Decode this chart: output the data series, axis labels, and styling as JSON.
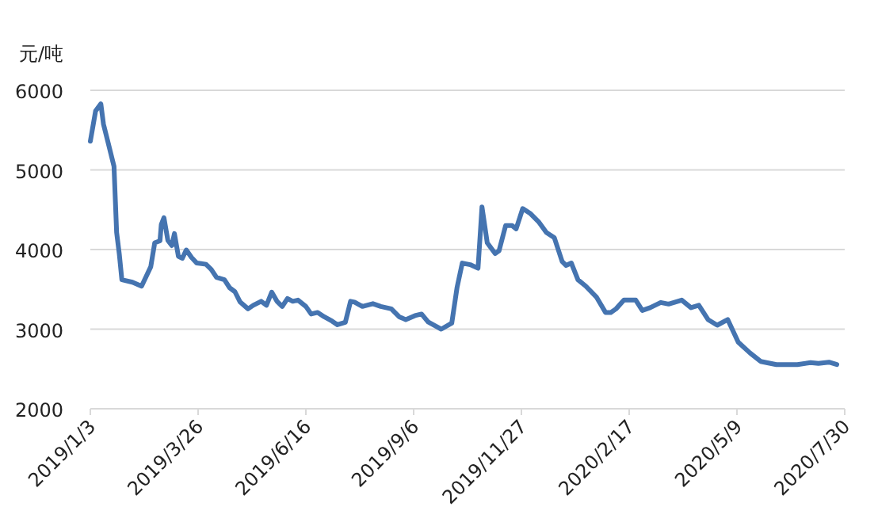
{
  "chart_data": {
    "type": "line",
    "ylabel": "元/吨",
    "color": "#4574b0",
    "grid": "y",
    "marker": "none",
    "line_style": "solid",
    "xlim": [
      "2019-01-03",
      "2020-07-30"
    ],
    "ylim": [
      2000,
      6000
    ],
    "yticks": [
      2000,
      3000,
      4000,
      5000,
      6000
    ],
    "xticks": [
      {
        "value": "2019-01-03",
        "label": "2019/1/3"
      },
      {
        "value": "2019-03-26",
        "label": "2019/3/26"
      },
      {
        "value": "2019-06-16",
        "label": "2019/6/16"
      },
      {
        "value": "2019-09-06",
        "label": "2019/9/6"
      },
      {
        "value": "2019-11-27",
        "label": "2019/11/27"
      },
      {
        "value": "2020-02-17",
        "label": "2020/2/17"
      },
      {
        "value": "2020-05-09",
        "label": "2020/5/9"
      },
      {
        "value": "2020-07-30",
        "label": "2020/7/30"
      }
    ],
    "x": [
      "2019-01-03",
      "2019-01-07",
      "2019-01-11",
      "2019-01-13",
      "2019-01-17",
      "2019-01-21",
      "2019-01-23",
      "2019-01-25",
      "2019-01-27",
      "2019-02-04",
      "2019-02-11",
      "2019-02-18",
      "2019-02-21",
      "2019-02-25",
      "2019-02-26",
      "2019-02-28",
      "2019-03-03",
      "2019-03-06",
      "2019-03-08",
      "2019-03-11",
      "2019-03-14",
      "2019-03-17",
      "2019-03-21",
      "2019-03-25",
      "2019-04-01",
      "2019-04-05",
      "2019-04-09",
      "2019-04-15",
      "2019-04-19",
      "2019-04-23",
      "2019-04-27",
      "2019-05-03",
      "2019-05-07",
      "2019-05-13",
      "2019-05-17",
      "2019-05-21",
      "2019-05-25",
      "2019-05-29",
      "2019-06-02",
      "2019-06-06",
      "2019-06-10",
      "2019-06-16",
      "2019-06-20",
      "2019-06-25",
      "2019-06-30",
      "2019-07-06",
      "2019-07-10",
      "2019-07-16",
      "2019-07-20",
      "2019-07-23",
      "2019-07-29",
      "2019-08-06",
      "2019-08-12",
      "2019-08-20",
      "2019-08-26",
      "2019-08-31",
      "2019-09-07",
      "2019-09-12",
      "2019-09-17",
      "2019-09-23",
      "2019-09-27",
      "2019-10-05",
      "2019-10-09",
      "2019-10-13",
      "2019-10-19",
      "2019-10-25",
      "2019-10-28",
      "2019-11-01",
      "2019-11-07",
      "2019-11-10",
      "2019-11-15",
      "2019-11-20",
      "2019-11-23",
      "2019-11-28",
      "2019-12-04",
      "2019-12-10",
      "2019-12-16",
      "2019-12-22",
      "2019-12-28",
      "2019-12-31",
      "2020-01-04",
      "2020-01-09",
      "2020-01-15",
      "2020-01-23",
      "2020-01-30",
      "2020-02-03",
      "2020-02-07",
      "2020-02-13",
      "2020-02-22",
      "2020-02-27",
      "2020-03-04",
      "2020-03-12",
      "2020-03-18",
      "2020-03-28",
      "2020-04-04",
      "2020-04-10",
      "2020-04-17",
      "2020-04-24",
      "2020-05-02",
      "2020-05-10",
      "2020-05-19",
      "2020-05-27",
      "2020-06-08",
      "2020-06-24",
      "2020-07-04",
      "2020-07-10",
      "2020-07-18",
      "2020-07-24"
    ],
    "values": [
      5360,
      5740,
      5830,
      5575,
      5310,
      5045,
      4215,
      3950,
      3620,
      3590,
      3540,
      3785,
      4085,
      4110,
      4315,
      4400,
      4115,
      4050,
      4200,
      3915,
      3890,
      3995,
      3900,
      3830,
      3815,
      3750,
      3650,
      3620,
      3520,
      3470,
      3340,
      3255,
      3300,
      3350,
      3300,
      3465,
      3350,
      3285,
      3385,
      3350,
      3365,
      3285,
      3190,
      3210,
      3155,
      3100,
      3055,
      3085,
      3350,
      3340,
      3285,
      3320,
      3285,
      3255,
      3155,
      3120,
      3170,
      3190,
      3090,
      3035,
      3000,
      3075,
      3520,
      3830,
      3810,
      3765,
      4535,
      4085,
      3950,
      3985,
      4300,
      4300,
      4260,
      4515,
      4450,
      4350,
      4215,
      4150,
      3850,
      3800,
      3830,
      3620,
      3540,
      3405,
      3210,
      3210,
      3255,
      3365,
      3365,
      3235,
      3270,
      3335,
      3315,
      3365,
      3270,
      3300,
      3120,
      3050,
      3120,
      2835,
      2700,
      2595,
      2555,
      2555,
      2580,
      2570,
      2585,
      2555
    ]
  }
}
